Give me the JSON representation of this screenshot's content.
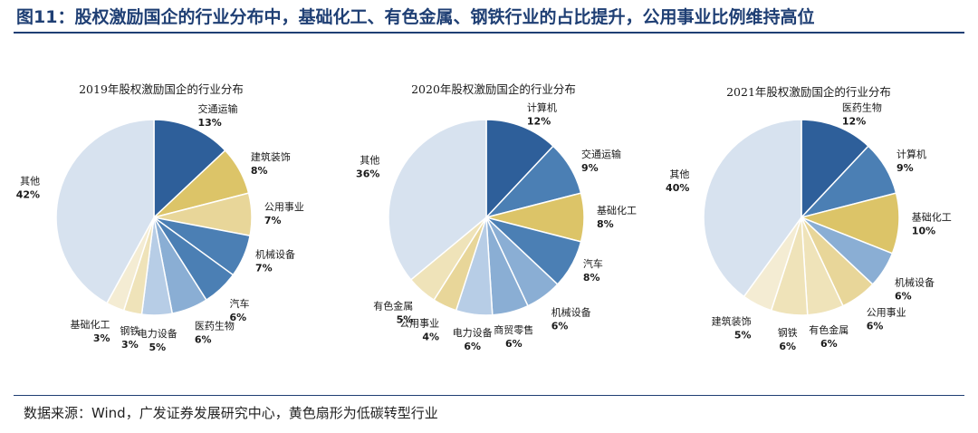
{
  "figure": {
    "title": "图11：股权激励国企的行业分布中，基础化工、有色金属、钢铁行业的占比提升，公用事业比例维持高位",
    "source": "数据来源：Wind，广发证券发展研究中心，黄色扇形为低碳转型行业"
  },
  "colors": {
    "title": "#1f3f74",
    "dark_blue": "#2e5f9a",
    "mid_blue": "#4b7fb4",
    "light_blue": "#8aaed4",
    "pale_blue": "#b7cde6",
    "other": "#d7e2ef",
    "dark_yellow": "#dcc468",
    "mid_yellow": "#e8d699",
    "light_yellow": "#efe3b9",
    "pale_yellow": "#f4ecd3"
  },
  "chart_data": [
    {
      "type": "pie",
      "title": "2019年股权激励国企的行业分布",
      "slices": [
        {
          "label": "交通运输",
          "value": 13,
          "pct": "13%",
          "color": "dark_blue"
        },
        {
          "label": "建筑装饰",
          "value": 8,
          "pct": "8%",
          "color": "dark_yellow"
        },
        {
          "label": "公用事业",
          "value": 7,
          "pct": "7%",
          "color": "mid_yellow"
        },
        {
          "label": "机械设备",
          "value": 7,
          "pct": "7%",
          "color": "mid_blue"
        },
        {
          "label": "汽车",
          "value": 6,
          "pct": "6%",
          "color": "mid_blue"
        },
        {
          "label": "医药生物",
          "value": 6,
          "pct": "6%",
          "color": "light_blue"
        },
        {
          "label": "电力设备",
          "value": 5,
          "pct": "5%",
          "color": "pale_blue"
        },
        {
          "label": "钢铁",
          "value": 3,
          "pct": "3%",
          "color": "light_yellow"
        },
        {
          "label": "基础化工",
          "value": 3,
          "pct": "3%",
          "color": "pale_yellow"
        },
        {
          "label": "其他",
          "value": 42,
          "pct": "42%",
          "color": "other"
        }
      ]
    },
    {
      "type": "pie",
      "title": "2020年股权激励国企的行业分布",
      "slices": [
        {
          "label": "计算机",
          "value": 12,
          "pct": "12%",
          "color": "dark_blue"
        },
        {
          "label": "交通运输",
          "value": 9,
          "pct": "9%",
          "color": "mid_blue"
        },
        {
          "label": "基础化工",
          "value": 8,
          "pct": "8%",
          "color": "dark_yellow"
        },
        {
          "label": "汽车",
          "value": 8,
          "pct": "8%",
          "color": "mid_blue"
        },
        {
          "label": "机械设备",
          "value": 6,
          "pct": "6%",
          "color": "light_blue"
        },
        {
          "label": "商贸零售",
          "value": 6,
          "pct": "6%",
          "color": "light_blue"
        },
        {
          "label": "电力设备",
          "value": 6,
          "pct": "6%",
          "color": "pale_blue"
        },
        {
          "label": "公用事业",
          "value": 4,
          "pct": "4%",
          "color": "mid_yellow"
        },
        {
          "label": "有色金属",
          "value": 5,
          "pct": "5%",
          "color": "light_yellow"
        },
        {
          "label": "其他",
          "value": 36,
          "pct": "36%",
          "color": "other"
        }
      ]
    },
    {
      "type": "pie",
      "title": "2021年股权激励国企的行业分布",
      "slices": [
        {
          "label": "医药生物",
          "value": 12,
          "pct": "12%",
          "color": "dark_blue"
        },
        {
          "label": "计算机",
          "value": 9,
          "pct": "9%",
          "color": "mid_blue"
        },
        {
          "label": "基础化工",
          "value": 10,
          "pct": "10%",
          "color": "dark_yellow"
        },
        {
          "label": "机械设备",
          "value": 6,
          "pct": "6%",
          "color": "light_blue"
        },
        {
          "label": "公用事业",
          "value": 6,
          "pct": "6%",
          "color": "mid_yellow"
        },
        {
          "label": "有色金属",
          "value": 6,
          "pct": "6%",
          "color": "light_yellow"
        },
        {
          "label": "钢铁",
          "value": 6,
          "pct": "6%",
          "color": "light_yellow"
        },
        {
          "label": "建筑装饰",
          "value": 5,
          "pct": "5%",
          "color": "pale_yellow"
        },
        {
          "label": "其他",
          "value": 40,
          "pct": "40%",
          "color": "other"
        }
      ]
    }
  ]
}
